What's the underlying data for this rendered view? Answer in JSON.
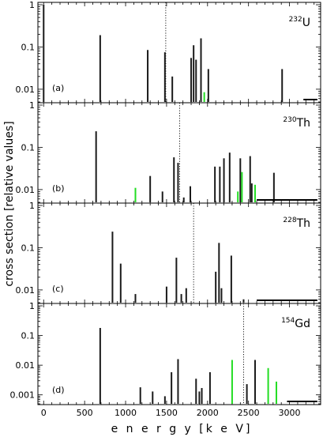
{
  "chart_data": {
    "type": "bar",
    "xlabel": "e n e r g y  [k e V]",
    "ylabel": "cross section  [relative values]",
    "xlim": [
      -70,
      3380
    ],
    "x_ticks": [
      0,
      500,
      1000,
      1500,
      2000,
      2500,
      3000
    ],
    "panels": [
      {
        "label": "(a)",
        "isotope_mass": "232",
        "isotope_symbol": "U",
        "ylim": [
          0.005,
          1.0
        ],
        "y_ticks": [
          {
            "v": 1,
            "t": "1"
          },
          {
            "v": 0.1,
            "t": "0.1"
          },
          {
            "v": 0.01,
            "t": "0.01"
          }
        ],
        "threshold_energy": 1490,
        "scale_bar": [
          3170,
          3340
        ],
        "lines": [
          {
            "e": 0,
            "v": 1.0,
            "c": "black"
          },
          {
            "e": 690,
            "v": 0.19,
            "c": "black"
          },
          {
            "e": 1270,
            "v": 0.085,
            "c": "black"
          },
          {
            "e": 1480,
            "v": 0.075,
            "c": "black"
          },
          {
            "e": 1570,
            "v": 0.02,
            "c": "black"
          },
          {
            "e": 1800,
            "v": 0.055,
            "c": "black"
          },
          {
            "e": 1830,
            "v": 0.11,
            "c": "black"
          },
          {
            "e": 1860,
            "v": 0.05,
            "c": "black"
          },
          {
            "e": 1920,
            "v": 0.16,
            "c": "black"
          },
          {
            "e": 1960,
            "v": 0.0085,
            "c": "green"
          },
          {
            "e": 2010,
            "v": 0.03,
            "c": "black"
          },
          {
            "e": 2910,
            "v": 0.03,
            "c": "black"
          }
        ]
      },
      {
        "label": "(b)",
        "isotope_mass": "230",
        "isotope_symbol": "Th",
        "ylim": [
          0.005,
          1.0
        ],
        "y_ticks": [
          {
            "v": 1,
            "t": "1"
          },
          {
            "v": 0.1,
            "t": "0.1"
          },
          {
            "v": 0.01,
            "t": "0.01"
          }
        ],
        "threshold_energy": 1660,
        "scale_bar": [
          2600,
          3340
        ],
        "lines": [
          {
            "e": 640,
            "v": 0.24,
            "c": "black"
          },
          {
            "e": 1120,
            "v": 0.011,
            "c": "green"
          },
          {
            "e": 1300,
            "v": 0.021,
            "c": "black"
          },
          {
            "e": 1450,
            "v": 0.009,
            "c": "black"
          },
          {
            "e": 1590,
            "v": 0.058,
            "c": "black"
          },
          {
            "e": 1640,
            "v": 0.043,
            "c": "black"
          },
          {
            "e": 1710,
            "v": 0.0065,
            "c": "black"
          },
          {
            "e": 1790,
            "v": 0.012,
            "c": "black"
          },
          {
            "e": 2090,
            "v": 0.035,
            "c": "black"
          },
          {
            "e": 2150,
            "v": 0.035,
            "c": "black"
          },
          {
            "e": 2200,
            "v": 0.055,
            "c": "black"
          },
          {
            "e": 2270,
            "v": 0.075,
            "c": "black"
          },
          {
            "e": 2370,
            "v": 0.009,
            "c": "green"
          },
          {
            "e": 2400,
            "v": 0.055,
            "c": "black"
          },
          {
            "e": 2420,
            "v": 0.026,
            "c": "green"
          },
          {
            "e": 2520,
            "v": 0.062,
            "c": "black"
          },
          {
            "e": 2540,
            "v": 0.014,
            "c": "black"
          },
          {
            "e": 2580,
            "v": 0.013,
            "c": "green"
          },
          {
            "e": 2810,
            "v": 0.025,
            "c": "black"
          }
        ]
      },
      {
        "label": "(c)",
        "isotope_mass": "228",
        "isotope_symbol": "Th",
        "ylim": [
          0.005,
          1.0
        ],
        "y_ticks": [
          {
            "v": 1,
            "t": "1"
          },
          {
            "v": 0.1,
            "t": "0.1"
          },
          {
            "v": 0.01,
            "t": "0.01"
          }
        ],
        "threshold_energy": 1830,
        "scale_bar": [
          2600,
          3340
        ],
        "lines": [
          {
            "e": 840,
            "v": 0.24,
            "c": "black"
          },
          {
            "e": 940,
            "v": 0.042,
            "c": "black"
          },
          {
            "e": 1120,
            "v": 0.008,
            "c": "black"
          },
          {
            "e": 1500,
            "v": 0.012,
            "c": "black"
          },
          {
            "e": 1620,
            "v": 0.058,
            "c": "black"
          },
          {
            "e": 1680,
            "v": 0.008,
            "c": "black"
          },
          {
            "e": 1740,
            "v": 0.011,
            "c": "black"
          },
          {
            "e": 2100,
            "v": 0.027,
            "c": "black"
          },
          {
            "e": 2140,
            "v": 0.13,
            "c": "black"
          },
          {
            "e": 2170,
            "v": 0.011,
            "c": "black"
          },
          {
            "e": 2290,
            "v": 0.065,
            "c": "black"
          },
          {
            "e": 2440,
            "v": 0.006,
            "c": "black"
          }
        ]
      },
      {
        "label": "(d)",
        "isotope_mass": "154",
        "isotope_symbol": "Gd",
        "ylim": [
          0.0005,
          1.0
        ],
        "y_ticks": [
          {
            "v": 1,
            "t": "1"
          },
          {
            "v": 0.1,
            "t": "0.1"
          },
          {
            "v": 0.01,
            "t": "0.01"
          },
          {
            "v": 0.001,
            "t": "0.001"
          }
        ],
        "threshold_energy": 2440,
        "scale_bar": [
          2970,
          3340
        ],
        "lines": [
          {
            "e": 690,
            "v": 0.18,
            "c": "black"
          },
          {
            "e": 1180,
            "v": 0.0018,
            "c": "black"
          },
          {
            "e": 1330,
            "v": 0.0013,
            "c": "black"
          },
          {
            "e": 1480,
            "v": 0.0009,
            "c": "black"
          },
          {
            "e": 1560,
            "v": 0.0058,
            "c": "black"
          },
          {
            "e": 1640,
            "v": 0.016,
            "c": "black"
          },
          {
            "e": 1860,
            "v": 0.0035,
            "c": "black"
          },
          {
            "e": 1900,
            "v": 0.0013,
            "c": "black"
          },
          {
            "e": 1930,
            "v": 0.0017,
            "c": "black"
          },
          {
            "e": 2030,
            "v": 0.0058,
            "c": "black"
          },
          {
            "e": 2300,
            "v": 0.015,
            "c": "green"
          },
          {
            "e": 2480,
            "v": 0.0023,
            "c": "black"
          },
          {
            "e": 2580,
            "v": 0.015,
            "c": "black"
          },
          {
            "e": 2740,
            "v": 0.008,
            "c": "green"
          },
          {
            "e": 2840,
            "v": 0.0028,
            "c": "green"
          }
        ]
      }
    ],
    "colors": {
      "black": "#1a1a1a",
      "green": "#22dd22"
    }
  }
}
